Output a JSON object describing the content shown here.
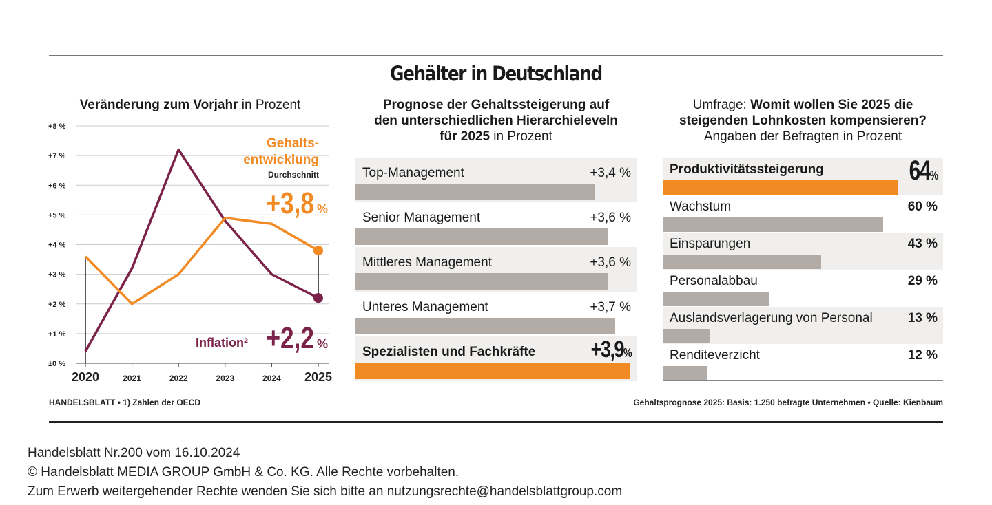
{
  "title": "Gehälter in Deutschland",
  "panel1": {
    "title_bold": "Veränderung zum Vorjahr",
    "title_rest": " in Prozent",
    "gehalt_label_line1": "Gehalts-",
    "gehalt_label_line2": "entwicklung",
    "durchschnitt": "Durchschnitt",
    "gehalt_value": "+3,8",
    "inflation_label": "Inflation²",
    "inflation_value": "+2,2",
    "pct": "%"
  },
  "chart_data": [
    {
      "type": "line",
      "x": [
        "2020",
        "2021",
        "2022",
        "2023",
        "2024",
        "2025"
      ],
      "y_ticks": [
        "±0 %",
        "+1 %",
        "+2 %",
        "+3 %",
        "+4 %",
        "+5 %",
        "+6 %",
        "+7 %",
        "+8 %"
      ],
      "ylim": [
        0,
        8
      ],
      "series": [
        {
          "name": "Gehaltsentwicklung",
          "color": "#f28a24",
          "values": [
            3.6,
            2.0,
            3.0,
            4.9,
            4.7,
            3.8
          ]
        },
        {
          "name": "Inflation²",
          "color": "#7b2248",
          "values": [
            0.4,
            3.2,
            7.2,
            4.8,
            3.0,
            2.2
          ]
        }
      ]
    },
    {
      "type": "bar",
      "title": "Prognose der Gehaltssteigerung auf den unterschiedlichen Hierarchieleveln für 2025 in Prozent",
      "categories": [
        "Top-Management",
        "Senior Management",
        "Mittleres Management",
        "Unteres Management",
        "Spezialisten und Fachkräfte"
      ],
      "values": [
        3.4,
        3.6,
        3.6,
        3.7,
        3.9
      ],
      "labels": [
        "+3,4 %",
        "+3,6 %",
        "+3,6 %",
        "+3,7 %",
        "+3,9"
      ],
      "highlight_pct": "%"
    },
    {
      "type": "bar",
      "title": "Umfrage: Womit wollen Sie 2025 die steigenden Lohnkosten kompensieren? Angaben der Befragten in Prozent",
      "categories": [
        "Produktivitätssteigerung",
        "Wachstum",
        "Einsparungen",
        "Personalabbau",
        "Auslandsverlagerung von Personal",
        "Renditeverzicht"
      ],
      "values": [
        64,
        60,
        43,
        29,
        13,
        12
      ],
      "labels": [
        "64",
        "60 %",
        "43 %",
        "29 %",
        "13 %",
        "12 %"
      ],
      "highlight_pct": "%"
    }
  ],
  "panel2": {
    "title_line1": "Prognose der Gehaltssteigerung auf",
    "title_line2": "den unterschiedlichen Hierarchieleveln",
    "title_line3_bold": "für 2025",
    "title_line3_rest": " in Prozent"
  },
  "panel3": {
    "title_line1_normal": "Umfrage: ",
    "title_line1_bold": "Womit wollen Sie 2025 die",
    "title_line2_bold": "steigenden Lohnkosten kompensieren?",
    "title_line3": "Angaben der Befragten in Prozent"
  },
  "footer": {
    "left": "HANDELSBLATT • 1) Zahlen der OECD",
    "right": "Gehaltsprognose 2025: Basis: 1.250 befragte Unternehmen • Quelle: Kienbaum"
  },
  "credits": {
    "line1": "Handelsblatt Nr.200 vom 16.10.2024",
    "line2": "© Handelsblatt MEDIA GROUP GmbH & Co. KG. Alle Rechte vorbehalten.",
    "line3": "Zum Erwerb weitergehender Rechte wenden Sie sich bitte an nutzungsrechte@handelsblattgroup.com"
  }
}
